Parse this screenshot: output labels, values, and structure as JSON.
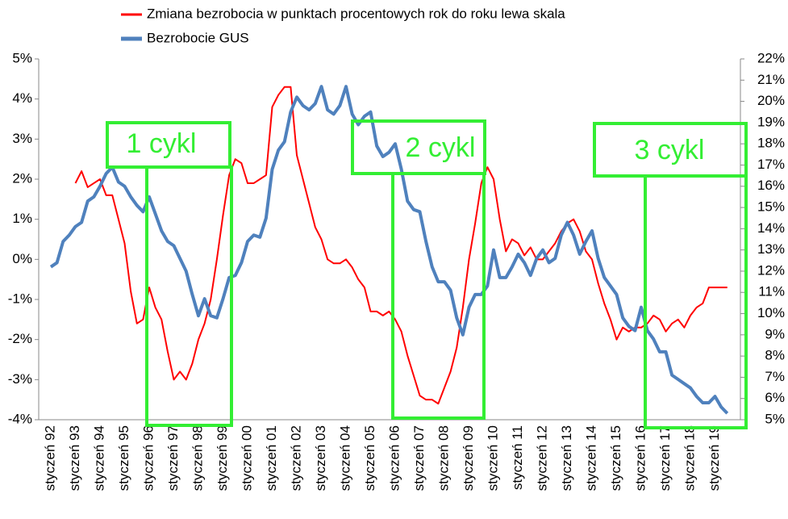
{
  "chart_data": {
    "type": "line",
    "legend": "top",
    "categories": [
      "styczeń 92",
      null,
      null,
      null,
      "styczeń 93",
      null,
      null,
      null,
      "styczeń 94",
      null,
      null,
      null,
      "styczeń 95",
      null,
      null,
      null,
      "styczeń 96",
      null,
      null,
      null,
      "styczeń 97",
      null,
      null,
      null,
      "styczeń 98",
      null,
      null,
      null,
      "styczeń 99",
      null,
      null,
      null,
      "styczeń 00",
      null,
      null,
      null,
      "styczeń 01",
      null,
      null,
      null,
      "styczeń 02",
      null,
      null,
      null,
      "styczeń 03",
      null,
      null,
      null,
      "styczeń 04",
      null,
      null,
      null,
      "styczeń 05",
      null,
      null,
      null,
      "styczeń 06",
      null,
      null,
      null,
      "styczeń 07",
      null,
      null,
      null,
      "styczeń 08",
      null,
      null,
      null,
      "styczeń 09",
      null,
      null,
      null,
      "styczeń 10",
      null,
      null,
      null,
      "styczeń 11",
      null,
      null,
      null,
      "styczeń 12",
      null,
      null,
      null,
      "styczeń 13",
      null,
      null,
      null,
      "styczeń 14",
      null,
      null,
      null,
      "styczeń 15",
      null,
      null,
      null,
      "styczeń 16",
      null,
      null,
      null,
      "styczeń 17",
      null,
      null,
      null,
      "styczeń 18",
      null,
      null,
      null,
      "styczeń 19",
      null,
      null
    ],
    "series": [
      {
        "name": "Zmiana bezrobocia w punktach procentowych rok do roku lewa skala",
        "color": "#ff0000",
        "axis": "y",
        "values": [
          null,
          null,
          null,
          null,
          1.9,
          2.2,
          1.8,
          1.9,
          2.0,
          1.6,
          1.6,
          1.0,
          0.4,
          -0.8,
          -1.6,
          -1.5,
          -0.7,
          -1.2,
          -1.5,
          -2.3,
          -3.0,
          -2.8,
          -3.0,
          -2.6,
          -2.0,
          -1.6,
          -1.0,
          0.0,
          1.1,
          2.1,
          2.5,
          2.4,
          1.9,
          1.9,
          2.0,
          2.1,
          3.8,
          4.1,
          4.3,
          4.3,
          2.6,
          2.0,
          1.4,
          0.8,
          0.5,
          0.0,
          -0.1,
          -0.1,
          0.0,
          -0.2,
          -0.5,
          -0.7,
          -1.3,
          -1.3,
          -1.4,
          -1.3,
          -1.5,
          -1.8,
          -2.4,
          -2.9,
          -3.4,
          -3.5,
          -3.5,
          -3.6,
          -3.2,
          -2.8,
          -2.2,
          -1.2,
          0.0,
          0.9,
          1.9,
          2.3,
          2.0,
          1.0,
          0.2,
          0.5,
          0.4,
          0.1,
          0.3,
          0.0,
          0.0,
          0.2,
          0.4,
          0.7,
          0.9,
          1.0,
          0.7,
          0.2,
          0.0,
          -0.6,
          -1.1,
          -1.5,
          -2.0,
          -1.7,
          -1.8,
          -1.7,
          -1.7,
          -1.6,
          -1.4,
          -1.5,
          -1.8,
          -1.6,
          -1.5,
          -1.7,
          -1.4,
          -1.2,
          -1.1,
          -0.7,
          -0.7,
          -0.7,
          -0.7
        ]
      },
      {
        "name": "Bezrobocie GUS",
        "color": "#4f81bd",
        "axis": "y2",
        "values": [
          12.2,
          12.4,
          13.4,
          13.7,
          14.1,
          14.3,
          15.3,
          15.5,
          16.0,
          16.6,
          16.9,
          16.2,
          16.0,
          15.5,
          15.1,
          14.8,
          15.5,
          14.7,
          13.9,
          13.4,
          13.2,
          12.6,
          12.0,
          10.9,
          9.9,
          10.7,
          9.9,
          9.8,
          10.7,
          11.7,
          11.8,
          12.4,
          13.4,
          13.7,
          13.6,
          14.5,
          16.8,
          17.7,
          18.1,
          19.5,
          20.2,
          19.8,
          19.6,
          19.9,
          20.7,
          19.6,
          19.4,
          19.8,
          20.7,
          19.4,
          18.9,
          19.3,
          19.5,
          17.9,
          17.4,
          17.6,
          18.0,
          16.8,
          15.3,
          14.9,
          14.8,
          13.4,
          12.2,
          11.5,
          11.5,
          11.1,
          9.8,
          9.0,
          10.3,
          10.9,
          10.9,
          11.3,
          13.0,
          11.7,
          11.7,
          12.2,
          12.8,
          12.4,
          11.8,
          12.6,
          13.0,
          12.4,
          12.6,
          13.7,
          14.3,
          13.7,
          12.8,
          13.4,
          13.9,
          12.6,
          11.7,
          11.3,
          10.9,
          9.8,
          9.4,
          9.2,
          10.3,
          9.2,
          8.8,
          8.2,
          8.2,
          7.1,
          6.9,
          6.7,
          6.5,
          6.1,
          5.8,
          5.8,
          6.1,
          5.6,
          5.3
        ]
      }
    ],
    "ylim": [
      -4,
      5
    ],
    "yticks": [
      {
        "value": -4,
        "label": "-4%"
      },
      {
        "value": -3,
        "label": "-3%"
      },
      {
        "value": -2,
        "label": "-2%"
      },
      {
        "value": -1,
        "label": "-1%"
      },
      {
        "value": 0,
        "label": "0%"
      },
      {
        "value": 1,
        "label": "1%"
      },
      {
        "value": 2,
        "label": "2%"
      },
      {
        "value": 3,
        "label": "3%"
      },
      {
        "value": 4,
        "label": "4%"
      },
      {
        "value": 5,
        "label": "5%"
      }
    ],
    "y2lim": [
      5,
      22
    ],
    "y2ticks": [
      {
        "value": 5,
        "label": "5%"
      },
      {
        "value": 6,
        "label": "6%"
      },
      {
        "value": 7,
        "label": "7%"
      },
      {
        "value": 8,
        "label": "8%"
      },
      {
        "value": 9,
        "label": "9%"
      },
      {
        "value": 10,
        "label": "10%"
      },
      {
        "value": 11,
        "label": "11%"
      },
      {
        "value": 12,
        "label": "12%"
      },
      {
        "value": 13,
        "label": "13%"
      },
      {
        "value": 14,
        "label": "14%"
      },
      {
        "value": 15,
        "label": "15%"
      },
      {
        "value": 16,
        "label": "16%"
      },
      {
        "value": 17,
        "label": "17%"
      },
      {
        "value": 18,
        "label": "18%"
      },
      {
        "value": 19,
        "label": "19%"
      },
      {
        "value": 20,
        "label": "20%"
      },
      {
        "value": 21,
        "label": "21%"
      },
      {
        "value": 22,
        "label": "22%"
      }
    ],
    "annotations": [
      "1 cykl",
      "2 cykl",
      "3 cykl"
    ],
    "grid": false
  }
}
